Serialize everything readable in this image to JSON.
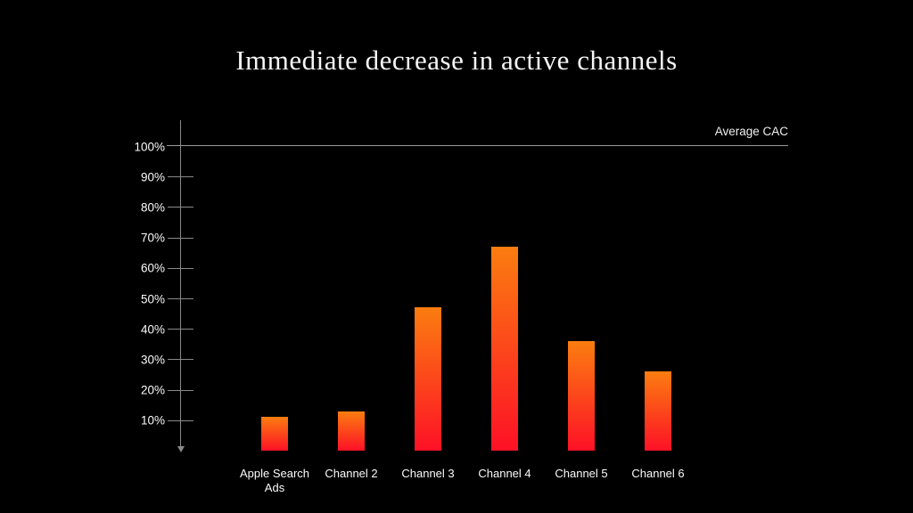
{
  "title": "Immediate decrease in active channels",
  "annotation": {
    "label": "Average CAC"
  },
  "colors": {
    "background": "#000000",
    "title_text": "#f5f5f5",
    "axis": "#8a8a8a",
    "reference_line": "#9a9a9a",
    "label_text": "#fafafa",
    "bar_gradient_top": "#fb7d10",
    "bar_gradient_bottom": "#fd1126"
  },
  "chart_data": {
    "type": "bar",
    "title": "Immediate decrease in active channels",
    "categories": [
      "Apple Search Ads",
      "Channel 2",
      "Channel 3",
      "Channel 4",
      "Channel 5",
      "Channel 6"
    ],
    "values": [
      11,
      13,
      47,
      67,
      36,
      26
    ],
    "unit": "%",
    "xlabel": "",
    "ylabel": "",
    "ylim": [
      0,
      100
    ],
    "y_ticks": [
      100,
      90,
      80,
      70,
      60,
      50,
      40,
      30,
      20,
      10
    ],
    "y_tick_labels": [
      "100%",
      "90%",
      "80%",
      "70%",
      "60%",
      "50%",
      "40%",
      "30%",
      "20%",
      "10%"
    ],
    "grid": "off",
    "legend": "none",
    "reference_line": {
      "label": "Average CAC",
      "value": 100,
      "position": "top-right"
    },
    "bar_color_style": "vertical gradient orange to red per bar"
  }
}
